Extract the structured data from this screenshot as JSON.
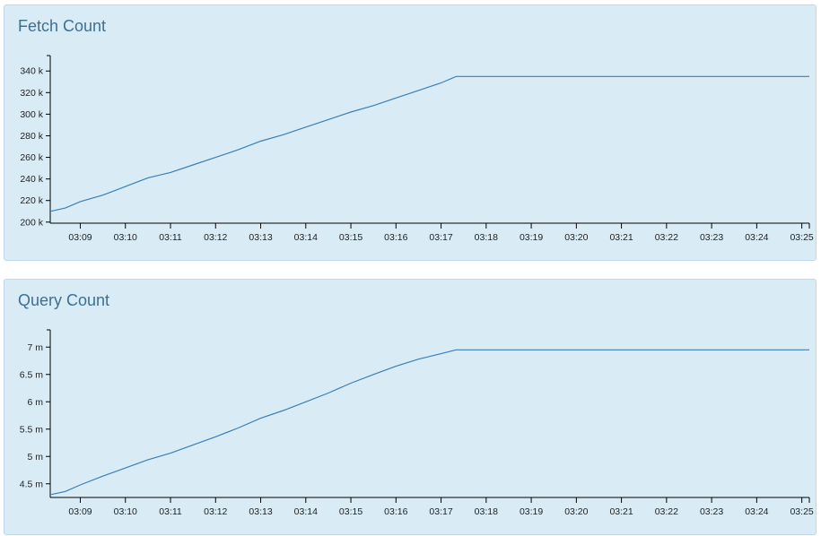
{
  "panels": [
    {
      "title": "Fetch Count"
    },
    {
      "title": "Query Count"
    }
  ],
  "colors": {
    "panel_background": "#d9ecf6",
    "title": "#3c6f96",
    "series_line": "#3a7fb5"
  },
  "chart_data": [
    {
      "type": "line",
      "title": "Fetch Count",
      "xlabel": "",
      "ylabel": "",
      "x_ticks": [
        "03:09",
        "03:10",
        "03:11",
        "03:12",
        "03:13",
        "03:14",
        "03:15",
        "03:16",
        "03:17",
        "03:18",
        "03:19",
        "03:20",
        "03:21",
        "03:22",
        "03:23",
        "03:24",
        "03:25"
      ],
      "y_ticks": [
        "200 k",
        "220 k",
        "240 k",
        "260 k",
        "280 k",
        "300 k",
        "320 k",
        "340 k"
      ],
      "y_tick_values": [
        200000,
        220000,
        240000,
        260000,
        280000,
        300000,
        320000,
        340000
      ],
      "xlim": [
        "03:08:20",
        "03:25:10"
      ],
      "ylim": [
        199000,
        351000
      ],
      "grid": false,
      "series": [
        {
          "x": [
            "03:08:20",
            "03:08:40",
            "03:09:00",
            "03:09:30",
            "03:10:00",
            "03:10:30",
            "03:11:00",
            "03:11:30",
            "03:12:00",
            "03:12:30",
            "03:13:00",
            "03:13:30",
            "03:14:00",
            "03:14:30",
            "03:15:00",
            "03:15:30",
            "03:16:00",
            "03:16:30",
            "03:17:00",
            "03:17:20",
            "03:18:00",
            "03:19:00",
            "03:20:00",
            "03:21:00",
            "03:22:00",
            "03:23:00",
            "03:24:00",
            "03:25:00",
            "03:25:10"
          ],
          "values": [
            210000,
            213000,
            219000,
            225000,
            233000,
            241000,
            246000,
            253000,
            260000,
            267000,
            275000,
            281000,
            288000,
            295000,
            302000,
            308000,
            315000,
            322000,
            329000,
            335000,
            335000,
            335000,
            335000,
            335000,
            335000,
            335000,
            335000,
            335000,
            335000
          ]
        }
      ]
    },
    {
      "type": "line",
      "title": "Query Count",
      "xlabel": "",
      "ylabel": "",
      "x_ticks": [
        "03:09",
        "03:10",
        "03:11",
        "03:12",
        "03:13",
        "03:14",
        "03:15",
        "03:16",
        "03:17",
        "03:18",
        "03:19",
        "03:20",
        "03:21",
        "03:22",
        "03:23",
        "03:24",
        "03:25"
      ],
      "y_ticks": [
        "4.5 m",
        "5 m",
        "5.5 m",
        "6 m",
        "6.5 m",
        "7 m"
      ],
      "y_tick_values": [
        4500000,
        5000000,
        5500000,
        6000000,
        6500000,
        7000000
      ],
      "xlim": [
        "03:08:20",
        "03:25:10"
      ],
      "ylim": [
        4250000,
        7250000
      ],
      "grid": false,
      "series": [
        {
          "x": [
            "03:08:20",
            "03:08:40",
            "03:09:00",
            "03:09:30",
            "03:10:00",
            "03:10:30",
            "03:11:00",
            "03:11:30",
            "03:12:00",
            "03:12:30",
            "03:13:00",
            "03:13:30",
            "03:14:00",
            "03:14:30",
            "03:15:00",
            "03:15:30",
            "03:16:00",
            "03:16:30",
            "03:17:00",
            "03:17:20",
            "03:18:00",
            "03:19:00",
            "03:20:00",
            "03:21:00",
            "03:22:00",
            "03:23:00",
            "03:24:00",
            "03:25:00",
            "03:25:10"
          ],
          "values": [
            4300000,
            4360000,
            4480000,
            4640000,
            4790000,
            4940000,
            5060000,
            5210000,
            5360000,
            5520000,
            5700000,
            5840000,
            6000000,
            6160000,
            6340000,
            6500000,
            6650000,
            6780000,
            6880000,
            6950000,
            6950000,
            6950000,
            6950000,
            6950000,
            6950000,
            6950000,
            6950000,
            6950000,
            6950000
          ]
        }
      ]
    }
  ]
}
